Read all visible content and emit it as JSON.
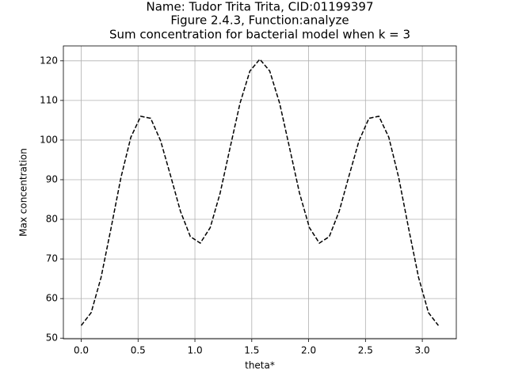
{
  "chart_data": {
    "type": "line",
    "title": [
      "Name: Tudor Trita Trita, CID:01199397",
      "Figure 2.4.3, Function:analyze",
      "Sum concentration for bacterial model when k = 3"
    ],
    "xlabel": "theta*",
    "ylabel": "Max concentration",
    "x": [
      0,
      0.0873,
      0.1745,
      0.2618,
      0.3491,
      0.4363,
      0.5236,
      0.6109,
      0.6981,
      0.7854,
      0.8727,
      0.9599,
      1.0472,
      1.1345,
      1.2217,
      1.309,
      1.3963,
      1.4835,
      1.5708,
      1.6581,
      1.7453,
      1.8326,
      1.9199,
      2.0071,
      2.0944,
      2.1817,
      2.2689,
      2.3562,
      2.4435,
      2.5307,
      2.618,
      2.7053,
      2.7925,
      2.8798,
      2.9671,
      3.0543,
      3.1416
    ],
    "values": [
      53.2,
      56.44,
      65.34,
      77.7,
      90.51,
      100.7,
      106.0,
      105.49,
      99.83,
      91.06,
      82.03,
      75.63,
      74.0,
      77.9,
      86.61,
      98.02,
      109.26,
      117.42,
      120.4,
      117.42,
      109.26,
      98.02,
      86.61,
      77.9,
      74.0,
      75.63,
      82.03,
      91.06,
      99.83,
      105.49,
      106.0,
      100.7,
      90.51,
      77.7,
      65.34,
      56.44,
      53.2
    ],
    "color": "#000000",
    "linestyle": "dashed",
    "xlim": [
      -0.157,
      3.299
    ],
    "xticks": [
      {
        "value": 0,
        "label": "0.0"
      },
      {
        "value": 0.5,
        "label": "0.5"
      },
      {
        "value": 1,
        "label": "1.0"
      },
      {
        "value": 1.5,
        "label": "1.5"
      },
      {
        "value": 2,
        "label": "2.0"
      },
      {
        "value": 2.5,
        "label": "2.5"
      },
      {
        "value": 3,
        "label": "3.0"
      }
    ],
    "ylim": [
      49.84,
      123.76
    ],
    "yticks": [
      50,
      60,
      70,
      80,
      90,
      100,
      110,
      120
    ],
    "grid": true
  }
}
